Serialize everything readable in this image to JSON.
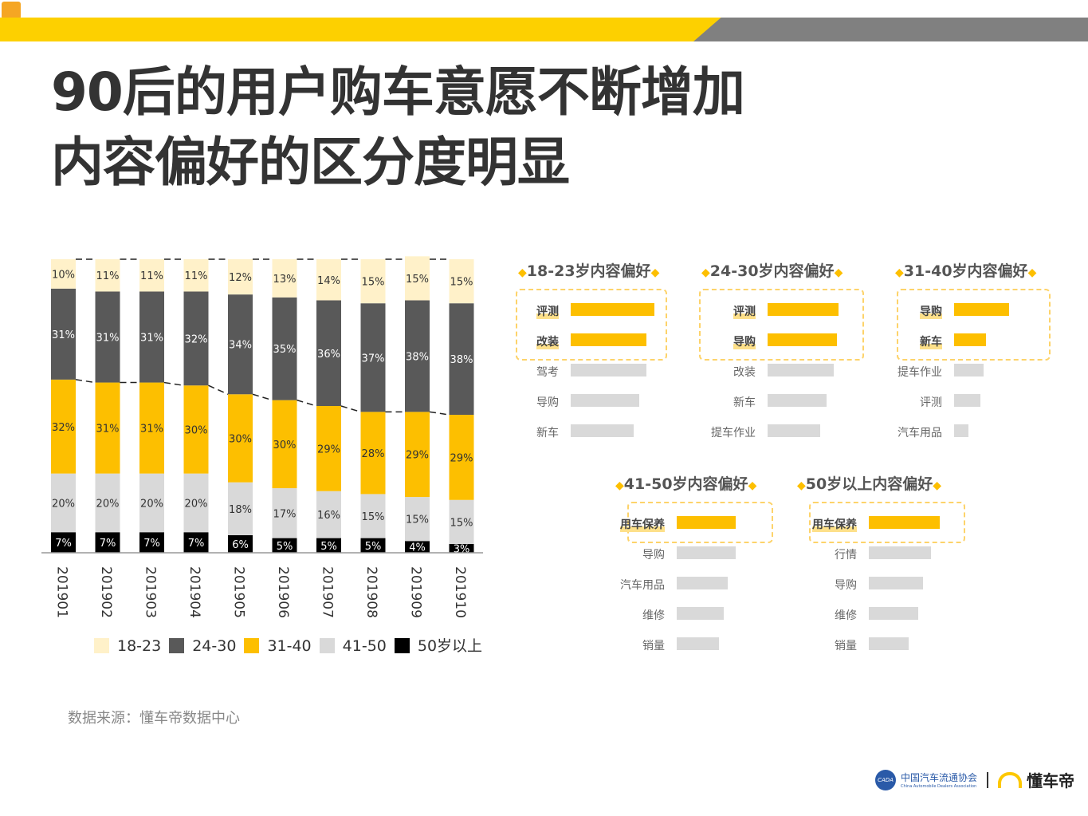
{
  "header": {
    "title_line1": "90后的用户购车意愿不断增加",
    "title_line2": "内容偏好的区分度明显"
  },
  "colors": {
    "c18_23": "#fff1c9",
    "c24_30": "#595959",
    "c31_40": "#fdbf00",
    "c41_50": "#d9d9d9",
    "c50": "#000000",
    "accent": "#fdd000"
  },
  "chart_data": {
    "type": "bar",
    "stacked": true,
    "categories": [
      "201901",
      "201902",
      "201903",
      "201904",
      "201905",
      "201906",
      "201907",
      "201908",
      "201909",
      "201910"
    ],
    "series": [
      {
        "name": "50岁以上",
        "values": [
          7,
          7,
          7,
          7,
          6,
          5,
          5,
          5,
          4,
          3
        ]
      },
      {
        "name": "41-50",
        "values": [
          20,
          20,
          20,
          20,
          18,
          17,
          16,
          15,
          15,
          15
        ]
      },
      {
        "name": "31-40",
        "values": [
          32,
          31,
          31,
          30,
          30,
          30,
          29,
          28,
          29,
          29
        ]
      },
      {
        "name": "24-30",
        "values": [
          31,
          31,
          31,
          32,
          34,
          35,
          36,
          37,
          38,
          38
        ]
      },
      {
        "name": "18-23",
        "values": [
          10,
          11,
          11,
          11,
          12,
          13,
          14,
          15,
          15,
          15
        ]
      }
    ],
    "ylim": [
      0,
      100
    ],
    "grid": false,
    "legend": "bottom",
    "legend_order": [
      "18-23",
      "24-30",
      "31-40",
      "41-50",
      "50岁以上"
    ]
  },
  "panels": [
    {
      "title": "18-23岁内容偏好",
      "items": [
        {
          "label": "评测",
          "value": 105,
          "hi": true
        },
        {
          "label": "改装",
          "value": 95,
          "hi": true
        },
        {
          "label": "驾考",
          "value": 95
        },
        {
          "label": "导购",
          "value": 86
        },
        {
          "label": "新车",
          "value": 79
        }
      ]
    },
    {
      "title": "24-30岁内容偏好",
      "items": [
        {
          "label": "评测",
          "value": 89,
          "hi": true
        },
        {
          "label": "导购",
          "value": 87,
          "hi": true
        },
        {
          "label": "改装",
          "value": 83
        },
        {
          "label": "新车",
          "value": 74
        },
        {
          "label": "提车作业",
          "value": 66
        }
      ]
    },
    {
      "title": "31-40岁内容偏好",
      "items": [
        {
          "label": "导购",
          "value": 69,
          "hi": true
        },
        {
          "label": "新车",
          "value": 40,
          "hi": true
        },
        {
          "label": "提车作业",
          "value": 37
        },
        {
          "label": "评测",
          "value": 33
        },
        {
          "label": "汽车用品",
          "value": 18
        }
      ]
    },
    {
      "title": "41-50岁内容偏好",
      "items": [
        {
          "label": "用车保养",
          "value": 74,
          "hi": true
        },
        {
          "label": "导购",
          "value": 74
        },
        {
          "label": "汽车用品",
          "value": 64
        },
        {
          "label": "维修",
          "value": 59
        },
        {
          "label": "销量",
          "value": 53
        }
      ]
    },
    {
      "title": "50岁以上内容偏好",
      "items": [
        {
          "label": "用车保养",
          "value": 89,
          "hi": true
        },
        {
          "label": "行情",
          "value": 78
        },
        {
          "label": "导购",
          "value": 68
        },
        {
          "label": "维修",
          "value": 62
        },
        {
          "label": "销量",
          "value": 50
        }
      ]
    }
  ],
  "source": "数据来源：懂车帝数据中心",
  "footer": {
    "cada_cn": "中国汽车流通协会",
    "cada_en": "China Automobile Dealers Association",
    "cada_abbr": "CADA",
    "brand": "懂车帝"
  }
}
